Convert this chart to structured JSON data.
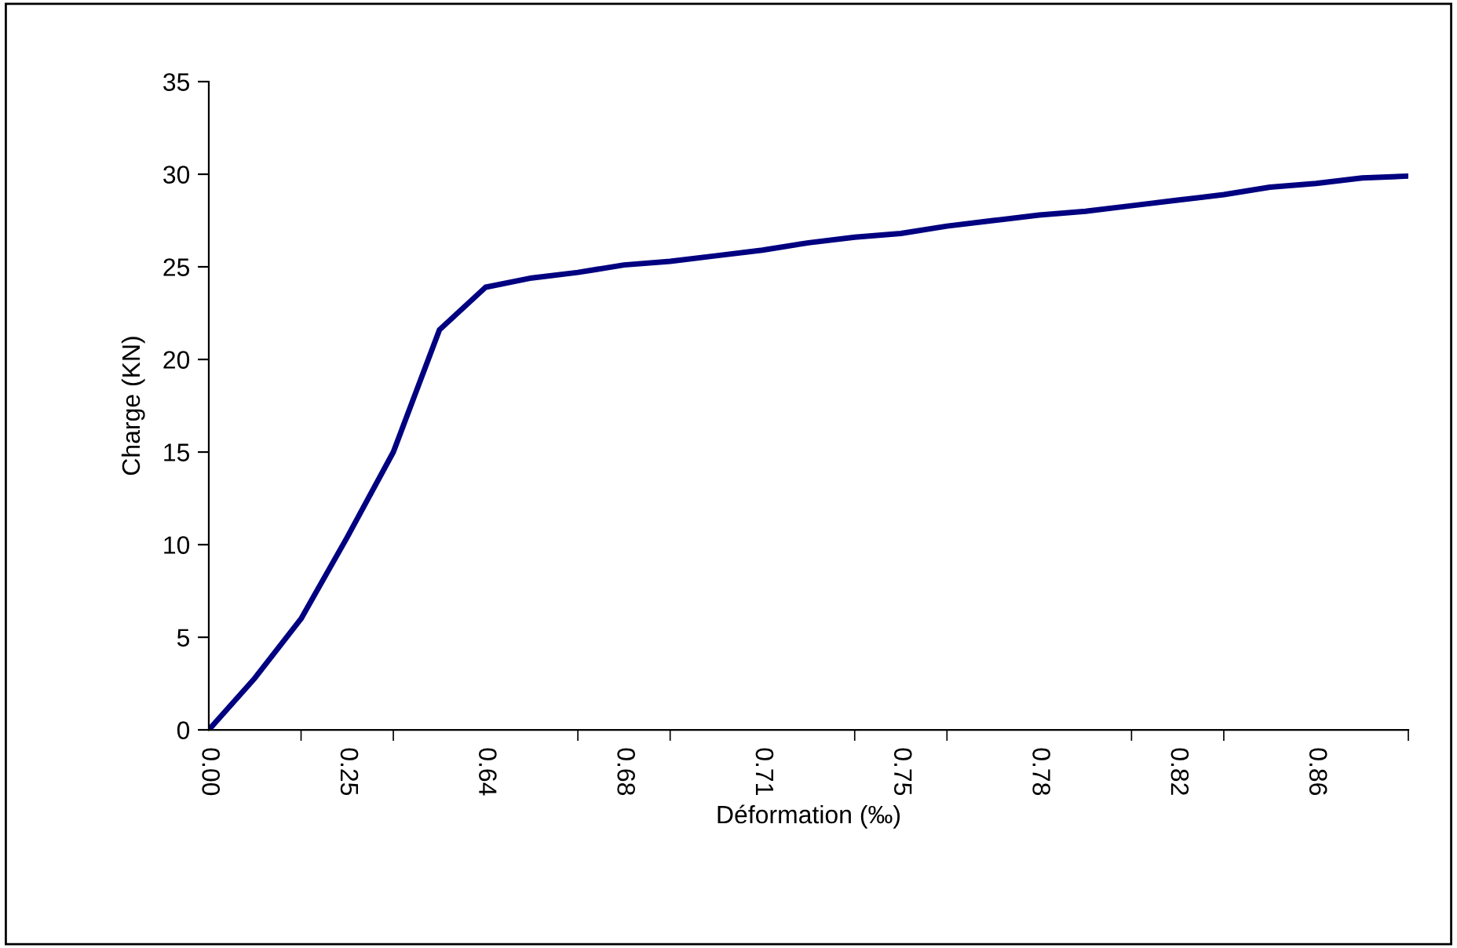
{
  "chart_data": {
    "type": "line",
    "xlabel": "Déformation (‰)",
    "ylabel": "Charge (KN)",
    "categories": [
      "0.00",
      null,
      null,
      "0.25",
      null,
      null,
      "0.64",
      null,
      null,
      "0.68",
      null,
      null,
      "0.71",
      null,
      null,
      "0.75",
      null,
      null,
      "0.78",
      null,
      null,
      "0.82",
      null,
      null,
      "0.86",
      null,
      null
    ],
    "series": [
      {
        "color": "#000080",
        "values": [
          0,
          2.8,
          6,
          10.4,
          15,
          21.6,
          23.9,
          24.4,
          24.7,
          25.1,
          25.3,
          25.6,
          25.9,
          26.3,
          26.6,
          26.8,
          27.2,
          27.5,
          27.8,
          28.0,
          28.3,
          28.6,
          28.9,
          29.3,
          29.5,
          29.8,
          29.9
        ]
      }
    ],
    "ylim": [
      0,
      35
    ],
    "yticks": [
      0,
      5,
      10,
      15,
      20,
      25,
      30,
      35
    ],
    "grid": false,
    "legend": false,
    "marker": "none",
    "line_style": "solid"
  }
}
